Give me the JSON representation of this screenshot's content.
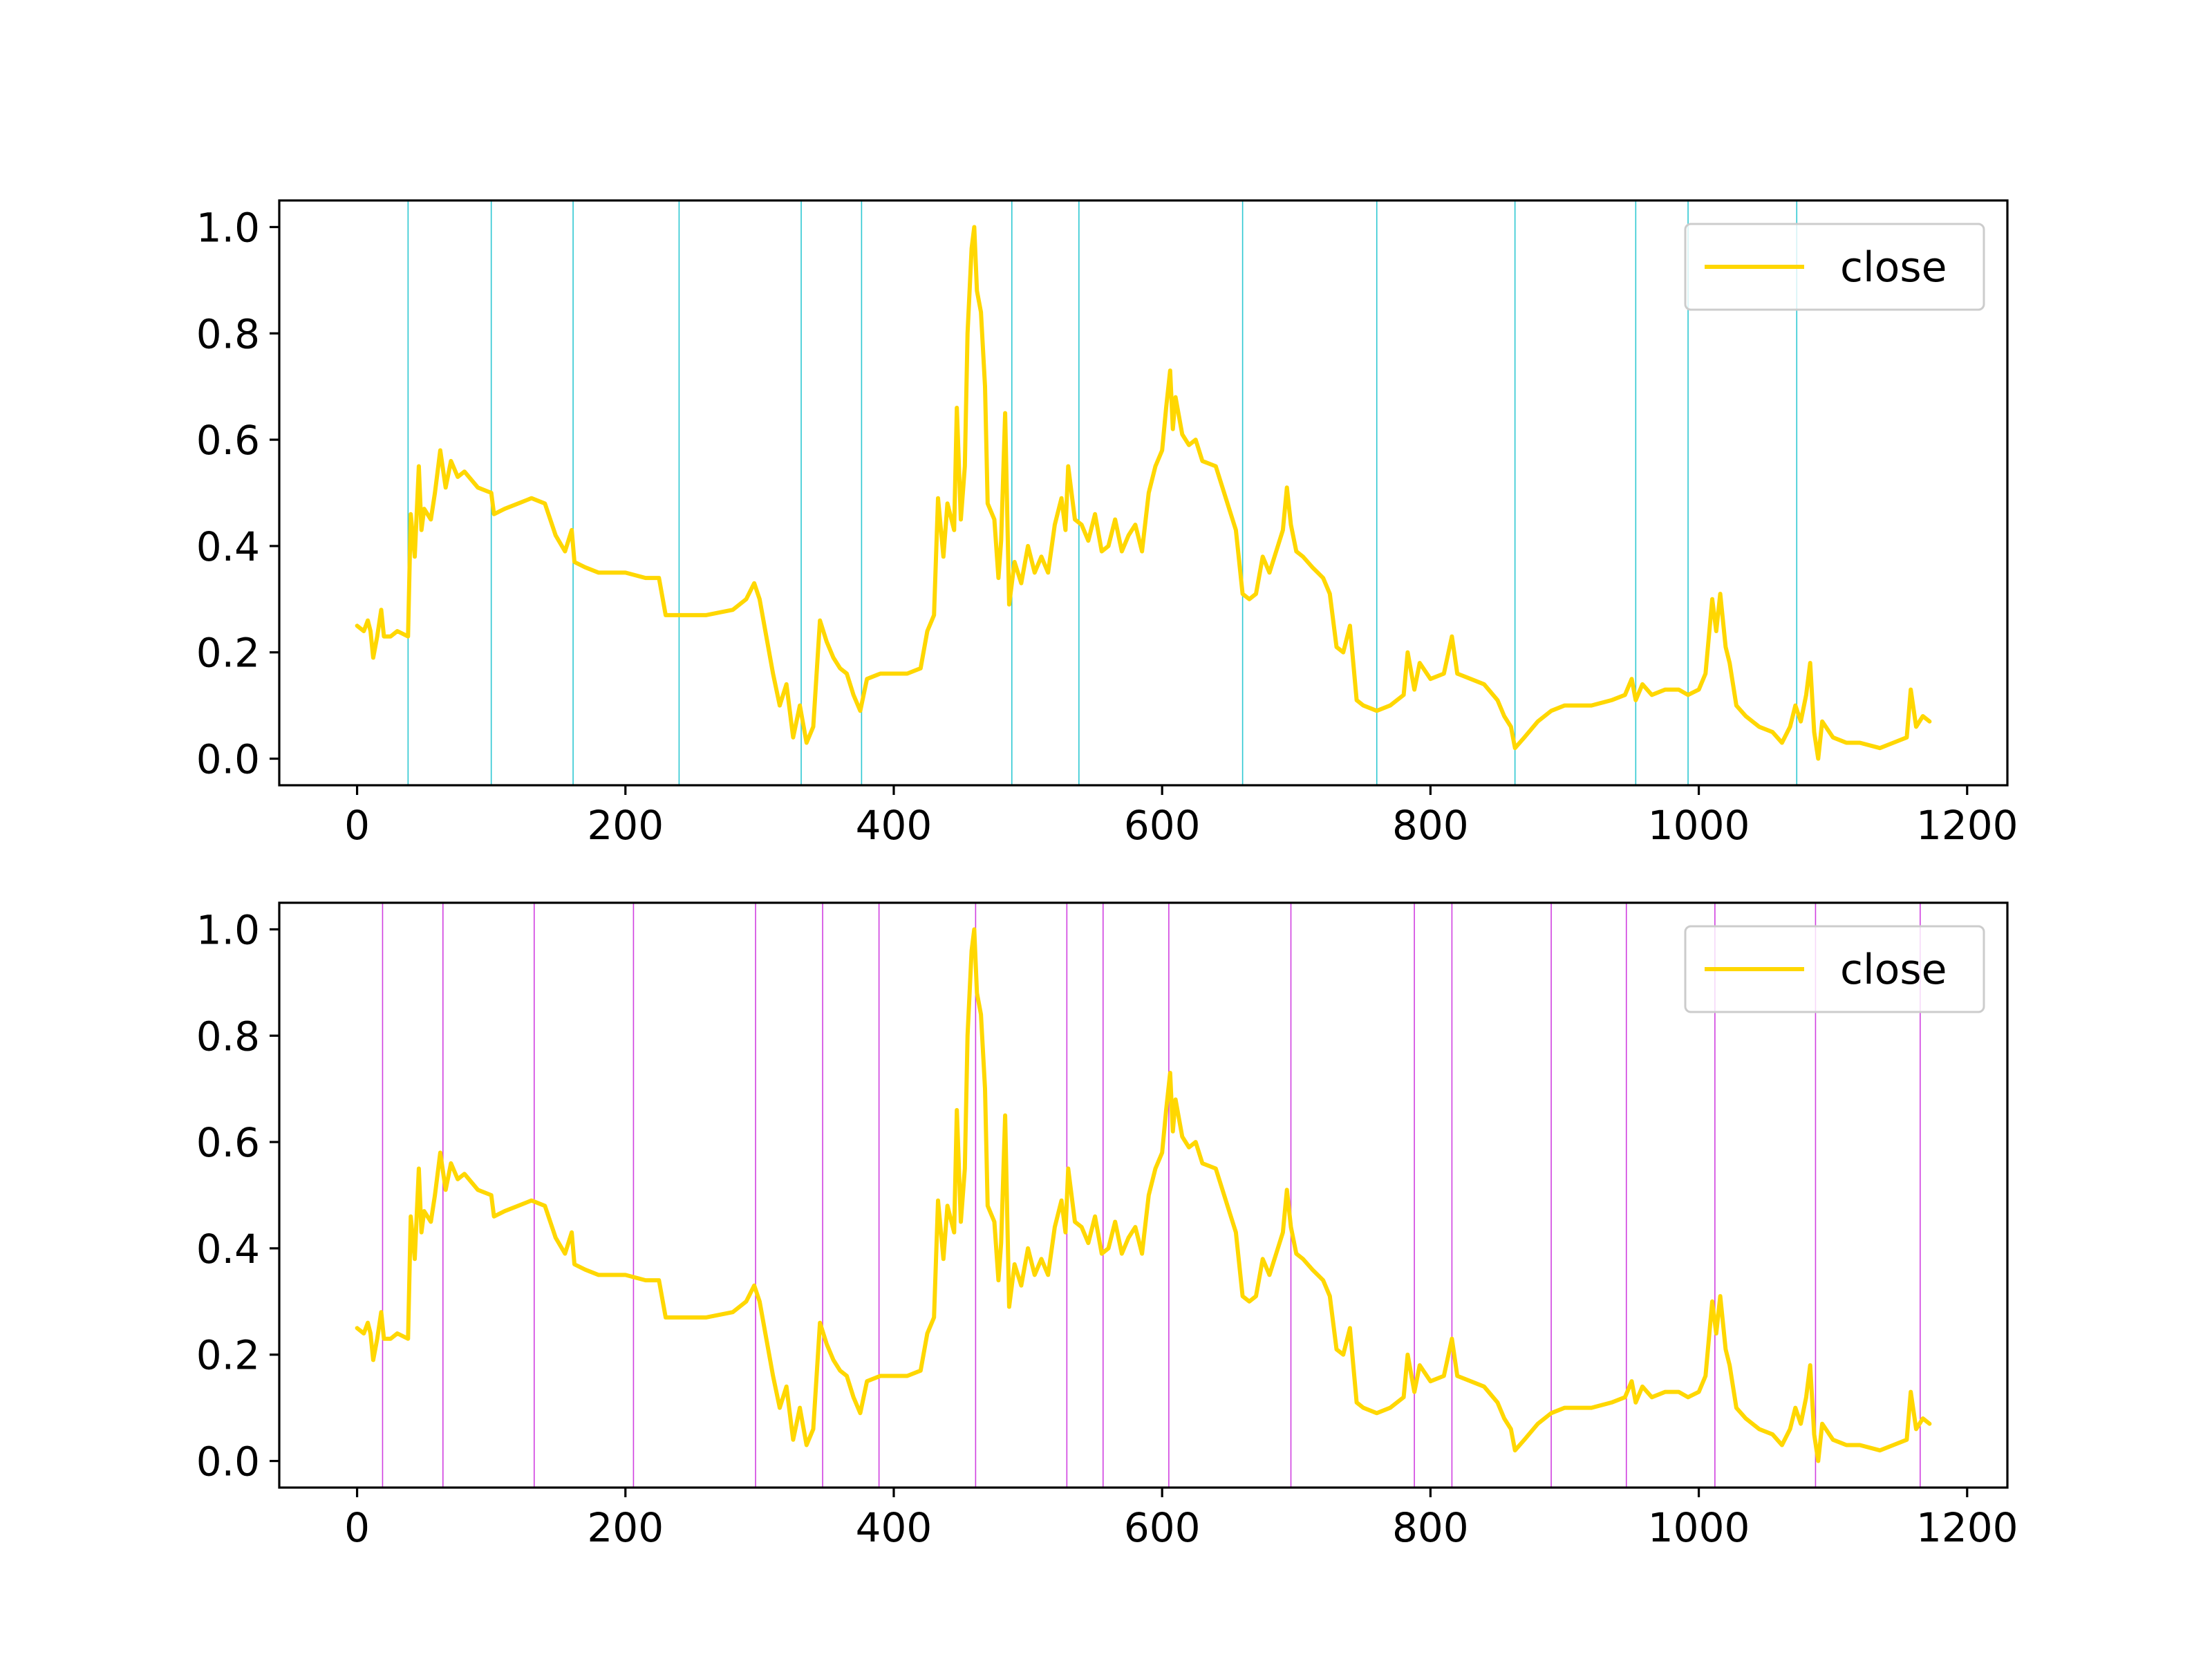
{
  "chart_data": [
    {
      "type": "line",
      "series": [
        {
          "name": "close",
          "color": "#FFD700",
          "points": [
            [
              0,
              0.25
            ],
            [
              5,
              0.24
            ],
            [
              8,
              0.26
            ],
            [
              10,
              0.24
            ],
            [
              12,
              0.19
            ],
            [
              15,
              0.23
            ],
            [
              18,
              0.28
            ],
            [
              20,
              0.23
            ],
            [
              25,
              0.23
            ],
            [
              30,
              0.24
            ],
            [
              38,
              0.23
            ],
            [
              40,
              0.46
            ],
            [
              43,
              0.38
            ],
            [
              46,
              0.55
            ],
            [
              48,
              0.43
            ],
            [
              50,
              0.47
            ],
            [
              55,
              0.45
            ],
            [
              58,
              0.5
            ],
            [
              62,
              0.58
            ],
            [
              66,
              0.51
            ],
            [
              70,
              0.56
            ],
            [
              75,
              0.53
            ],
            [
              80,
              0.54
            ],
            [
              90,
              0.51
            ],
            [
              100,
              0.5
            ],
            [
              102,
              0.46
            ],
            [
              110,
              0.47
            ],
            [
              120,
              0.48
            ],
            [
              130,
              0.49
            ],
            [
              140,
              0.48
            ],
            [
              148,
              0.42
            ],
            [
              155,
              0.39
            ],
            [
              160,
              0.43
            ],
            [
              162,
              0.37
            ],
            [
              170,
              0.36
            ],
            [
              180,
              0.35
            ],
            [
              200,
              0.35
            ],
            [
              215,
              0.34
            ],
            [
              225,
              0.34
            ],
            [
              230,
              0.27
            ],
            [
              240,
              0.27
            ],
            [
              260,
              0.27
            ],
            [
              280,
              0.28
            ],
            [
              290,
              0.3
            ],
            [
              296,
              0.33
            ],
            [
              300,
              0.3
            ],
            [
              305,
              0.23
            ],
            [
              310,
              0.16
            ],
            [
              315,
              0.1
            ],
            [
              320,
              0.14
            ],
            [
              325,
              0.04
            ],
            [
              330,
              0.1
            ],
            [
              335,
              0.03
            ],
            [
              340,
              0.06
            ],
            [
              345,
              0.26
            ],
            [
              350,
              0.22
            ],
            [
              355,
              0.19
            ],
            [
              360,
              0.17
            ],
            [
              365,
              0.16
            ],
            [
              370,
              0.12
            ],
            [
              375,
              0.09
            ],
            [
              380,
              0.15
            ],
            [
              390,
              0.16
            ],
            [
              410,
              0.16
            ],
            [
              420,
              0.17
            ],
            [
              425,
              0.24
            ],
            [
              430,
              0.27
            ],
            [
              433,
              0.49
            ],
            [
              437,
              0.38
            ],
            [
              440,
              0.48
            ],
            [
              445,
              0.43
            ],
            [
              447,
              0.66
            ],
            [
              450,
              0.45
            ],
            [
              453,
              0.55
            ],
            [
              455,
              0.8
            ],
            [
              458,
              0.96
            ],
            [
              460,
              1.0
            ],
            [
              462,
              0.88
            ],
            [
              465,
              0.84
            ],
            [
              468,
              0.7
            ],
            [
              470,
              0.48
            ],
            [
              475,
              0.45
            ],
            [
              478,
              0.34
            ],
            [
              480,
              0.41
            ],
            [
              483,
              0.65
            ],
            [
              486,
              0.29
            ],
            [
              490,
              0.37
            ],
            [
              495,
              0.33
            ],
            [
              500,
              0.4
            ],
            [
              505,
              0.35
            ],
            [
              510,
              0.38
            ],
            [
              515,
              0.35
            ],
            [
              520,
              0.44
            ],
            [
              525,
              0.49
            ],
            [
              528,
              0.43
            ],
            [
              530,
              0.55
            ],
            [
              535,
              0.45
            ],
            [
              540,
              0.44
            ],
            [
              545,
              0.41
            ],
            [
              550,
              0.46
            ],
            [
              555,
              0.39
            ],
            [
              560,
              0.4
            ],
            [
              565,
              0.45
            ],
            [
              570,
              0.39
            ],
            [
              575,
              0.42
            ],
            [
              580,
              0.44
            ],
            [
              585,
              0.39
            ],
            [
              590,
              0.5
            ],
            [
              595,
              0.55
            ],
            [
              600,
              0.58
            ],
            [
              603,
              0.66
            ],
            [
              606,
              0.73
            ],
            [
              608,
              0.62
            ],
            [
              610,
              0.68
            ],
            [
              615,
              0.61
            ],
            [
              620,
              0.59
            ],
            [
              625,
              0.6
            ],
            [
              630,
              0.56
            ],
            [
              640,
              0.55
            ],
            [
              650,
              0.47
            ],
            [
              655,
              0.43
            ],
            [
              660,
              0.31
            ],
            [
              665,
              0.3
            ],
            [
              670,
              0.31
            ],
            [
              675,
              0.38
            ],
            [
              680,
              0.35
            ],
            [
              685,
              0.39
            ],
            [
              690,
              0.43
            ],
            [
              693,
              0.51
            ],
            [
              696,
              0.44
            ],
            [
              700,
              0.39
            ],
            [
              705,
              0.38
            ],
            [
              712,
              0.36
            ],
            [
              720,
              0.34
            ],
            [
              725,
              0.31
            ],
            [
              730,
              0.21
            ],
            [
              735,
              0.2
            ],
            [
              740,
              0.25
            ],
            [
              745,
              0.11
            ],
            [
              750,
              0.1
            ],
            [
              760,
              0.09
            ],
            [
              770,
              0.1
            ],
            [
              780,
              0.12
            ],
            [
              783,
              0.2
            ],
            [
              788,
              0.13
            ],
            [
              792,
              0.18
            ],
            [
              800,
              0.15
            ],
            [
              810,
              0.16
            ],
            [
              816,
              0.23
            ],
            [
              820,
              0.16
            ],
            [
              830,
              0.15
            ],
            [
              840,
              0.14
            ],
            [
              850,
              0.11
            ],
            [
              855,
              0.08
            ],
            [
              860,
              0.06
            ],
            [
              863,
              0.02
            ],
            [
              870,
              0.04
            ],
            [
              880,
              0.07
            ],
            [
              890,
              0.09
            ],
            [
              900,
              0.1
            ],
            [
              920,
              0.1
            ],
            [
              935,
              0.11
            ],
            [
              945,
              0.12
            ],
            [
              950,
              0.15
            ],
            [
              953,
              0.11
            ],
            [
              958,
              0.14
            ],
            [
              965,
              0.12
            ],
            [
              975,
              0.13
            ],
            [
              985,
              0.13
            ],
            [
              992,
              0.12
            ],
            [
              1000,
              0.13
            ],
            [
              1005,
              0.16
            ],
            [
              1010,
              0.3
            ],
            [
              1013,
              0.24
            ],
            [
              1016,
              0.31
            ],
            [
              1020,
              0.21
            ],
            [
              1023,
              0.18
            ],
            [
              1028,
              0.1
            ],
            [
              1035,
              0.08
            ],
            [
              1045,
              0.06
            ],
            [
              1055,
              0.05
            ],
            [
              1062,
              0.03
            ],
            [
              1068,
              0.06
            ],
            [
              1072,
              0.1
            ],
            [
              1076,
              0.07
            ],
            [
              1080,
              0.12
            ],
            [
              1083,
              0.18
            ],
            [
              1086,
              0.05
            ],
            [
              1089,
              0.0
            ],
            [
              1092,
              0.07
            ],
            [
              1100,
              0.04
            ],
            [
              1110,
              0.03
            ],
            [
              1120,
              0.03
            ],
            [
              1135,
              0.02
            ],
            [
              1145,
              0.03
            ],
            [
              1155,
              0.04
            ],
            [
              1158,
              0.13
            ],
            [
              1162,
              0.06
            ],
            [
              1167,
              0.08
            ],
            [
              1172,
              0.07
            ]
          ]
        }
      ],
      "vlines": {
        "color": "#2EC8D2",
        "x": [
          38,
          100,
          161,
          240,
          331,
          376,
          488,
          538,
          660,
          760,
          863,
          953,
          992,
          1073
        ]
      },
      "xlim": [
        -58,
        1230
      ],
      "ylim": [
        -0.05,
        1.05
      ],
      "xticks": [
        0,
        200,
        400,
        600,
        800,
        1000,
        1200
      ],
      "yticks": [
        0.0,
        0.2,
        0.4,
        0.6,
        0.8,
        1.0
      ],
      "legend": {
        "label": "close",
        "placement": "top-right"
      }
    },
    {
      "type": "line",
      "series_ref": "same close series as first panel",
      "vlines": {
        "color": "#D040E0",
        "x": [
          19,
          64,
          132,
          206,
          297,
          347,
          389,
          461,
          529,
          556,
          605,
          696,
          788,
          816,
          890,
          946,
          1012,
          1087,
          1165
        ]
      },
      "xlim": [
        -58,
        1230
      ],
      "ylim": [
        -0.05,
        1.05
      ],
      "xticks": [
        0,
        200,
        400,
        600,
        800,
        1000,
        1200
      ],
      "yticks": [
        0.0,
        0.2,
        0.4,
        0.6,
        0.8,
        1.0
      ],
      "legend": {
        "label": "close",
        "placement": "top-right"
      }
    }
  ]
}
